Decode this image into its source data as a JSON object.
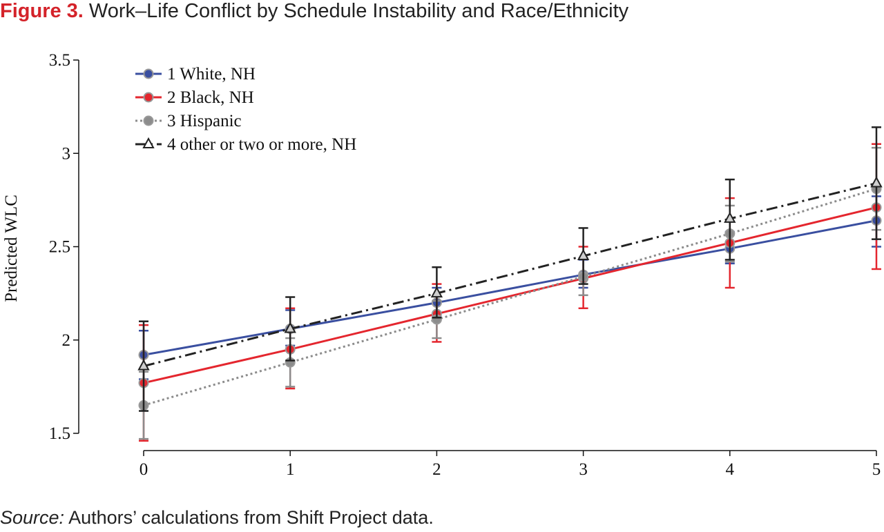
{
  "title": {
    "label": "Figure 3.",
    "text": "Work–Life Conflict by Schedule Instability and Race/Ethnicity"
  },
  "source": {
    "label": "Source:",
    "text": "Authors’ calculations from Shift Project data."
  },
  "chart_data": {
    "type": "line",
    "xlabel": "",
    "ylabel": "Predicted WLC",
    "x": [
      0,
      1,
      2,
      3,
      4,
      5
    ],
    "x_tick_labels": [
      "0",
      "1",
      "2",
      "3",
      "4",
      "5"
    ],
    "y_ticks": [
      1.5,
      2,
      2.5,
      3,
      3.5
    ],
    "y_tick_labels": [
      "1.5",
      "2",
      "2.5",
      "3",
      "3.5"
    ],
    "xlim": [
      0,
      5
    ],
    "ylim": [
      1.5,
      3.5
    ],
    "grid": false,
    "legend_position": "top-left",
    "error_bars": true,
    "series": [
      {
        "name": "1 White, NH",
        "color": "#3a4fa0",
        "line_style": "solid",
        "marker": "circle",
        "values": [
          1.92,
          2.06,
          2.2,
          2.35,
          2.49,
          2.64
        ],
        "ci_low": [
          1.79,
          1.97,
          2.13,
          2.28,
          2.41,
          2.5
        ],
        "ci_high": [
          2.05,
          2.16,
          2.28,
          2.43,
          2.58,
          2.77
        ]
      },
      {
        "name": "2 Black, NH",
        "color": "#e4262e",
        "line_style": "solid",
        "marker": "circle",
        "values": [
          1.77,
          1.95,
          2.14,
          2.33,
          2.52,
          2.71
        ],
        "ci_low": [
          1.46,
          1.74,
          1.99,
          2.17,
          2.28,
          2.38
        ],
        "ci_high": [
          2.08,
          2.17,
          2.3,
          2.5,
          2.76,
          3.05
        ]
      },
      {
        "name": "3 Hispanic",
        "color": "#8c8c8c",
        "line_style": "dotted",
        "marker": "circle",
        "values": [
          1.65,
          1.88,
          2.11,
          2.34,
          2.57,
          2.81
        ],
        "ci_low": [
          1.47,
          1.75,
          2.01,
          2.24,
          2.42,
          2.59
        ],
        "ci_high": [
          1.83,
          2.01,
          2.21,
          2.44,
          2.72,
          3.03
        ]
      },
      {
        "name": "4 other or two or more, NH",
        "color": "#222222",
        "line_style": "dash-dot",
        "marker": "triangle",
        "values": [
          1.86,
          2.06,
          2.25,
          2.45,
          2.65,
          2.84
        ],
        "ci_low": [
          1.62,
          1.89,
          2.12,
          2.3,
          2.43,
          2.54
        ],
        "ci_high": [
          2.1,
          2.23,
          2.39,
          2.6,
          2.86,
          3.14
        ]
      }
    ]
  }
}
